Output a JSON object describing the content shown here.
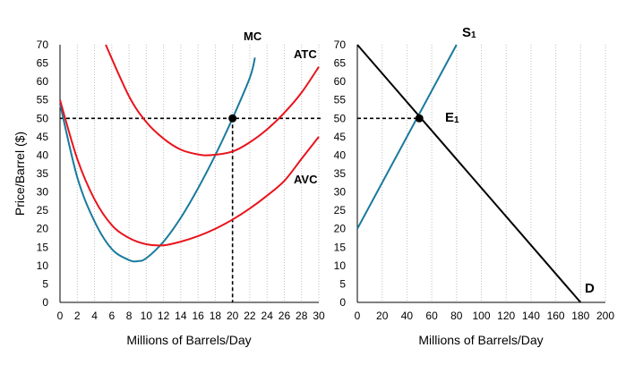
{
  "chart_data": [
    {
      "type": "line",
      "title": "",
      "xlabel": "Millions of Barrels/Day",
      "ylabel": "Price/Barrel ($)",
      "xlim": [
        0,
        30
      ],
      "ylim": [
        0,
        70
      ],
      "xticks": [
        "0",
        "2",
        "4",
        "6",
        "8",
        "10",
        "12",
        "14",
        "16",
        "18",
        "20",
        "22",
        "24",
        "26",
        "28",
        "30"
      ],
      "yticks": [
        "0",
        "5",
        "10",
        "15",
        "20",
        "25",
        "30",
        "35",
        "40",
        "45",
        "50",
        "55",
        "60",
        "65",
        "70"
      ],
      "grid": "vertical dotted",
      "series": [
        {
          "name": "MC",
          "color": "#1a7a9c",
          "x": [
            0,
            2,
            4,
            6,
            8,
            9,
            10,
            12,
            14,
            16,
            18,
            20,
            22,
            22.6
          ],
          "y": [
            54,
            34,
            22,
            14.5,
            11.5,
            11.2,
            12,
            16.5,
            23,
            31,
            40,
            50,
            61,
            66.5
          ]
        },
        {
          "name": "ATC",
          "color": "#e8141c",
          "x": [
            5.3,
            8,
            10,
            12,
            14,
            16,
            17.5,
            20,
            22,
            24,
            26,
            28,
            30
          ],
          "y": [
            70,
            56,
            49,
            44.5,
            41.5,
            40.2,
            40,
            41,
            43.5,
            47,
            51.5,
            57,
            64
          ]
        },
        {
          "name": "AVC",
          "color": "#e8141c",
          "x": [
            0,
            2,
            4,
            6,
            8,
            10,
            12,
            14,
            16,
            18,
            20,
            22,
            24,
            26,
            28,
            30
          ],
          "y": [
            55,
            39,
            28,
            21,
            17.5,
            15.8,
            15.5,
            16.5,
            18,
            20,
            22.5,
            25.5,
            29,
            33,
            39,
            45
          ]
        }
      ],
      "reference_lines": {
        "price": 50,
        "quantity": 20,
        "style": "dashed"
      },
      "marked_point": {
        "x": 20,
        "y": 50
      },
      "labels": {
        "mc": "MC",
        "atc": "ATC",
        "avc": "AVC"
      }
    },
    {
      "type": "line",
      "title": "",
      "xlabel": "Millions of Barrels/Day",
      "ylabel": "",
      "xlim": [
        0,
        200
      ],
      "ylim": [
        0,
        70
      ],
      "xticks": [
        "0",
        "20",
        "40",
        "60",
        "80",
        "100",
        "120",
        "140",
        "160",
        "180",
        "200"
      ],
      "yticks": [
        "0",
        "5",
        "10",
        "15",
        "20",
        "25",
        "30",
        "35",
        "40",
        "45",
        "50",
        "55",
        "60",
        "65",
        "70"
      ],
      "grid": "vertical dotted",
      "series": [
        {
          "name": "S1",
          "color": "#1a7a9c",
          "x": [
            0,
            80
          ],
          "y": [
            20,
            70
          ]
        },
        {
          "name": "D",
          "color": "#000000",
          "x": [
            0,
            180
          ],
          "y": [
            70,
            0
          ]
        }
      ],
      "reference_lines": {
        "price": 50,
        "style": "dashed"
      },
      "marked_point": {
        "x": 50,
        "y": 50
      },
      "labels": {
        "supply": "S",
        "supply_sub": "1",
        "demand": "D",
        "equilibrium": "E",
        "equilibrium_sub": "1"
      }
    }
  ]
}
